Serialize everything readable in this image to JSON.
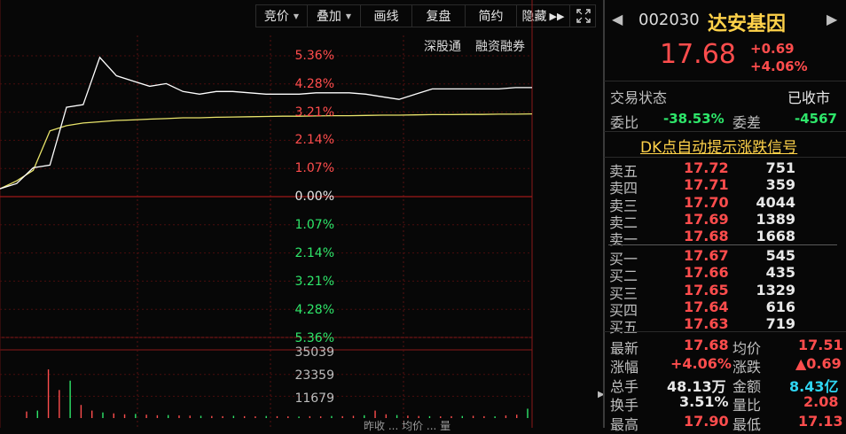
{
  "toolbar": {
    "items": [
      {
        "label": "竞价",
        "dropdown": true
      },
      {
        "label": "叠加",
        "dropdown": true
      },
      {
        "label": "画线",
        "dropdown": false
      },
      {
        "label": "复盘",
        "dropdown": false
      },
      {
        "label": "简约",
        "dropdown": false
      },
      {
        "label": "隐藏",
        "dropdown": false
      }
    ]
  },
  "chart_links": {
    "sz_connect": "深股通",
    "margin": "融资融券"
  },
  "price_axis": {
    "up": [
      "5.36%",
      "4.28%",
      "3.21%",
      "2.14%",
      "1.07%"
    ],
    "zero": "0.00%",
    "down": [
      "1.07%",
      "2.14%",
      "3.21%",
      "4.28%",
      "5.36%"
    ]
  },
  "volume_axis": {
    "labels": [
      "35039",
      "23359",
      "11679"
    ]
  },
  "bottom_legend": "昨收 ... 均价 ... 量",
  "stock": {
    "code": "002030",
    "name": "达安基因",
    "price": "17.68",
    "change": "+0.69",
    "change_pct": "+4.06%"
  },
  "trade_status": {
    "label": "交易状态",
    "value": "已收市"
  },
  "commission": {
    "ratio_label": "委比",
    "ratio_value": "-38.53%",
    "diff_label": "委差",
    "diff_value": "-4567"
  },
  "dk_signal": "DK点自动提示涨跌信号",
  "order_book": {
    "asks": [
      {
        "label": "卖五",
        "price": "17.72",
        "volume": "751"
      },
      {
        "label": "卖四",
        "price": "17.71",
        "volume": "359"
      },
      {
        "label": "卖三",
        "price": "17.70",
        "volume": "4044"
      },
      {
        "label": "卖二",
        "price": "17.69",
        "volume": "1389"
      },
      {
        "label": "卖一",
        "price": "17.68",
        "volume": "1668"
      }
    ],
    "bids": [
      {
        "label": "买一",
        "price": "17.67",
        "volume": "545"
      },
      {
        "label": "买二",
        "price": "17.66",
        "volume": "435"
      },
      {
        "label": "买三",
        "price": "17.65",
        "volume": "1329"
      },
      {
        "label": "买四",
        "price": "17.64",
        "volume": "616"
      },
      {
        "label": "买五",
        "price": "17.63",
        "volume": "719"
      }
    ]
  },
  "stats": {
    "latest_label": "最新",
    "latest": "17.68",
    "avg_label": "均价",
    "avg": "17.51",
    "pct_label": "涨幅",
    "pct": "+4.06%",
    "chg_label": "涨跌",
    "chg": "▲0.69",
    "vol_label": "总手",
    "vol": "48.13万",
    "amt_label": "金额",
    "amt": "8.43亿",
    "turn_label": "换手",
    "turn": "3.51%",
    "vr_label": "量比",
    "vr": "2.08",
    "high_label": "最高",
    "high": "17.90",
    "low_label": "最低",
    "low": "17.13"
  },
  "colors": {
    "up": "#ff4d4d",
    "down": "#2ee66a",
    "price_line": "#ffffff",
    "avg_line": "#e8e36a",
    "name": "#ffd24a"
  },
  "chart_data": {
    "type": "line",
    "series": [],
    "y_price_pct_range": [
      -5.36,
      5.36
    ],
    "price_pct": [
      0.3,
      0.5,
      1.1,
      1.2,
      3.4,
      3.5,
      5.3,
      4.6,
      4.4,
      4.2,
      4.3,
      4.0,
      3.9,
      4.0,
      4.0,
      3.95,
      3.9,
      3.9,
      3.9,
      3.95,
      3.95,
      3.95,
      3.9,
      3.8,
      3.7,
      3.9,
      4.1,
      4.1,
      4.1,
      4.1,
      4.1,
      4.15,
      4.15
    ],
    "avg_pct": [
      0.3,
      0.6,
      1.0,
      2.5,
      2.7,
      2.8,
      2.85,
      2.9,
      2.92,
      2.95,
      2.97,
      3.0,
      3.0,
      3.02,
      3.03,
      3.04,
      3.05,
      3.06,
      3.06,
      3.07,
      3.08,
      3.08,
      3.09,
      3.1,
      3.1,
      3.11,
      3.12,
      3.12,
      3.13,
      3.13,
      3.14,
      3.14,
      3.15
    ],
    "volume_range": [
      0,
      35039
    ],
    "volumes": [
      3500,
      4000,
      26000,
      15000,
      20000,
      7000,
      4000,
      3000,
      2500,
      2000,
      2200,
      1800,
      1500,
      1600,
      1400,
      1300,
      1200,
      1100,
      1000,
      1200,
      1000,
      900,
      1100,
      1000,
      900,
      800,
      1000,
      900,
      1100,
      1000,
      1200,
      1500,
      4000,
      2000,
      1600,
      1300,
      1100,
      1000,
      900,
      1000,
      1100,
      1200,
      1000,
      900,
      1400,
      1800,
      5000
    ]
  }
}
